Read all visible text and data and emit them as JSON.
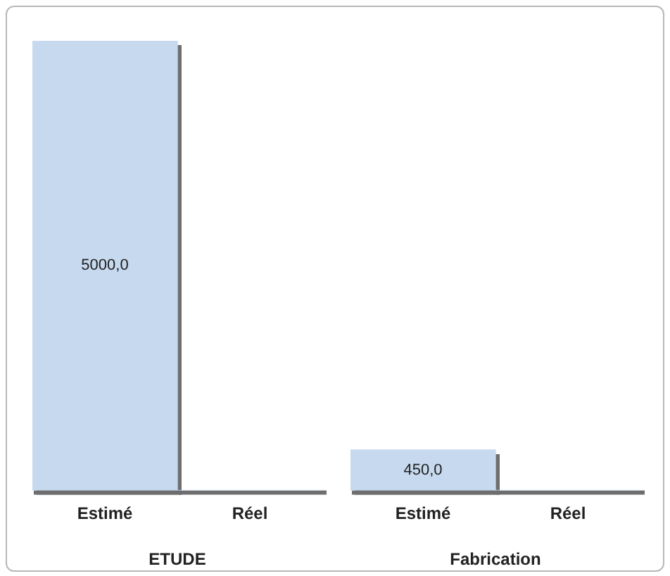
{
  "chart_data": [
    {
      "type": "bar",
      "xlabel": "ETUDE",
      "categories": [
        "Estimé",
        "Réel"
      ],
      "values": [
        5000,
        0
      ],
      "value_labels": [
        "5000,0",
        null
      ],
      "color": "#c6d9ee",
      "grid": false,
      "legend": false
    },
    {
      "type": "bar",
      "xlabel": "Fabrication",
      "categories": [
        "Estimé",
        "Réel"
      ],
      "values": [
        450,
        0
      ],
      "value_labels": [
        "450,0",
        null
      ],
      "color": "#c6d9ee",
      "grid": false,
      "legend": false
    }
  ]
}
